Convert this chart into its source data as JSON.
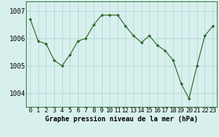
{
  "x": [
    0,
    1,
    2,
    3,
    4,
    5,
    6,
    7,
    8,
    9,
    10,
    11,
    12,
    13,
    14,
    15,
    16,
    17,
    18,
    19,
    20,
    21,
    22,
    23
  ],
  "y": [
    1006.7,
    1005.9,
    1005.8,
    1005.2,
    1005.0,
    1005.4,
    1005.9,
    1006.0,
    1006.5,
    1006.85,
    1006.85,
    1006.85,
    1006.45,
    1006.1,
    1005.85,
    1006.1,
    1005.75,
    1005.55,
    1005.2,
    1004.35,
    1003.8,
    1005.0,
    1006.1,
    1006.45
  ],
  "ylim": [
    1003.5,
    1007.35
  ],
  "yticks": [
    1004,
    1005,
    1006,
    1007
  ],
  "xlim": [
    -0.5,
    23.5
  ],
  "line_color": "#2d6b2d",
  "marker_color": "#2d6b2d",
  "bg_color": "#d7f0ee",
  "grid_color": "#aacfcc",
  "xlabel": "Graphe pression niveau de la mer (hPa)",
  "xlabel_fontsize": 7.0,
  "tick_fontsize": 6.5,
  "ytick_fontsize": 7.0
}
